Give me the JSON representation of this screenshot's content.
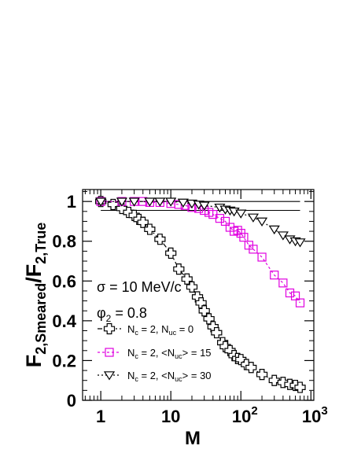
{
  "chart_data": {
    "type": "scatter",
    "x_scale": "log",
    "xlim": [
      0.55,
      1100
    ],
    "ylim": [
      0,
      1.06
    ],
    "xlabel": "M",
    "ylabel": {
      "main": "F",
      "sub1": "2,Smeared",
      "slash": "/F",
      "sub2": "2,True"
    },
    "x_ticks": [
      {
        "value": 1,
        "base": "1",
        "exp": ""
      },
      {
        "value": 10,
        "base": "10",
        "exp": ""
      },
      {
        "value": 100,
        "base": "10",
        "exp": "2"
      },
      {
        "value": 1000,
        "base": "10",
        "exp": "3"
      }
    ],
    "y_ticks": [
      {
        "value": 0,
        "label": "0"
      },
      {
        "value": 0.2,
        "label": "0.2"
      },
      {
        "value": 0.4,
        "label": "0.4"
      },
      {
        "value": 0.6,
        "label": "0.6"
      },
      {
        "value": 0.8,
        "label": "0.8"
      },
      {
        "value": 1,
        "label": "1"
      }
    ],
    "reference_lines": [
      1.0,
      0.955
    ],
    "annotations": {
      "sigma": "σ = 10 MeV/c",
      "phi_main": "φ",
      "phi_sub": "2",
      "phi_value": " = 0.8"
    },
    "series": [
      {
        "legend": {
          "p1": "N",
          "s1": "c",
          "p2": " = 2, N",
          "s2": "uc",
          "p3": " = 0"
        },
        "marker": "cross",
        "color": "#000000",
        "dash": "6 3 2 3",
        "x": [
          1,
          1.5,
          2,
          2.5,
          3,
          3.5,
          4,
          5,
          7,
          10,
          13,
          17,
          20,
          24,
          27,
          30,
          35,
          40,
          45,
          55,
          60,
          70,
          80,
          90,
          100,
          120,
          140,
          200,
          300,
          400,
          500,
          600,
          700
        ],
        "y": [
          1.0,
          0.985,
          0.965,
          0.945,
          0.93,
          0.91,
          0.895,
          0.86,
          0.81,
          0.74,
          0.66,
          0.61,
          0.57,
          0.52,
          0.49,
          0.45,
          0.41,
          0.37,
          0.34,
          0.29,
          0.27,
          0.25,
          0.225,
          0.21,
          0.205,
          0.18,
          0.165,
          0.13,
          0.1,
          0.09,
          0.08,
          0.075,
          0.065
        ]
      },
      {
        "legend": {
          "p1": "N",
          "s1": "c",
          "p2": " = 2, <N",
          "s2": "uc",
          "p3": "> = 15"
        },
        "marker": "square",
        "color": "#e000e0",
        "dash": "3 3",
        "x": [
          1,
          2,
          3,
          4,
          5,
          7,
          10,
          13,
          16,
          20,
          25,
          30,
          35,
          40,
          50,
          60,
          70,
          80,
          90,
          100,
          110,
          130,
          150,
          200,
          300,
          400,
          500,
          600,
          700
        ],
        "y": [
          1.0,
          1.0,
          1.0,
          1.0,
          0.995,
          0.995,
          0.99,
          0.985,
          0.98,
          0.97,
          0.965,
          0.955,
          0.945,
          0.935,
          0.915,
          0.9,
          0.87,
          0.85,
          0.855,
          0.84,
          0.82,
          0.78,
          0.76,
          0.72,
          0.63,
          0.59,
          0.54,
          0.525,
          0.49
        ]
      },
      {
        "legend": {
          "p1": "N",
          "s1": "c",
          "p2": " = 2, <N",
          "s2": "uc",
          "p3": "> = 30"
        },
        "marker": "triangle-down",
        "color": "#000000",
        "dash": "2 3",
        "x": [
          1,
          2,
          3,
          5,
          7,
          10,
          15,
          20,
          25,
          30,
          50,
          60,
          70,
          80,
          100,
          150,
          200,
          300,
          400,
          500,
          600,
          700
        ],
        "y": [
          1.0,
          1.0,
          1.0,
          1.0,
          1.0,
          1.0,
          0.995,
          0.99,
          0.985,
          0.98,
          0.97,
          0.96,
          0.955,
          0.95,
          0.94,
          0.92,
          0.9,
          0.86,
          0.83,
          0.81,
          0.8,
          0.795
        ]
      }
    ]
  }
}
